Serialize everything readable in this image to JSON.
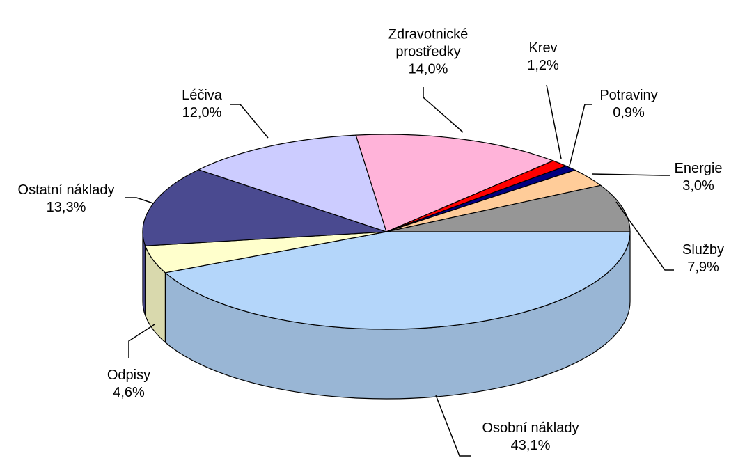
{
  "chart_data": {
    "type": "pie3d",
    "categories": [
      "Osobní náklady",
      "Odpisy",
      "Ostatní náklady",
      "Léčiva",
      "Zdravotnické prostředky",
      "Krev",
      "Potraviny",
      "Energie",
      "Služby"
    ],
    "values": [
      43.1,
      4.6,
      13.3,
      12.0,
      14.0,
      1.2,
      0.9,
      3.0,
      7.9
    ],
    "value_labels": [
      "43,1%",
      "4,6%",
      "13,3%",
      "12,0%",
      "14,0%",
      "1,2%",
      "0,9%",
      "3,0%",
      "7,9%"
    ],
    "colors": [
      "#b4d6fa",
      "#ffffcc",
      "#4a4a90",
      "#ccccff",
      "#ffb3d9",
      "#ff0000",
      "#000080",
      "#ffcc99",
      "#969696"
    ]
  }
}
